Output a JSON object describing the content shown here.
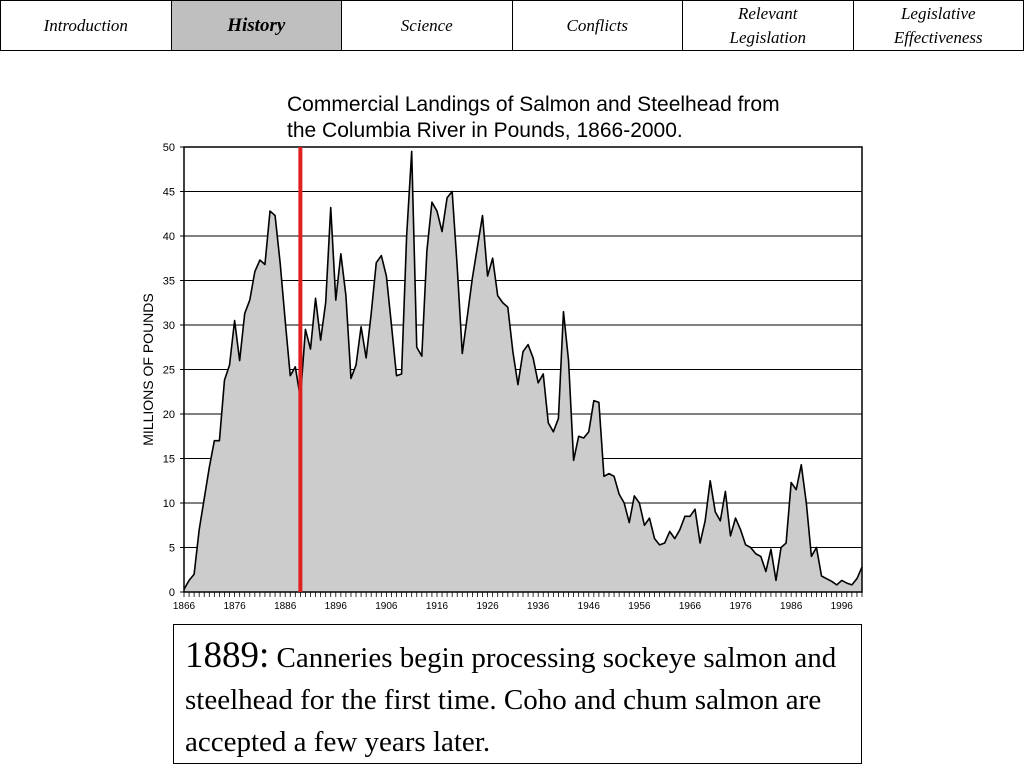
{
  "nav": {
    "tabs": [
      {
        "label": "Introduction",
        "active": false
      },
      {
        "label": "History",
        "active": true
      },
      {
        "label": "Science",
        "active": false
      },
      {
        "label": "Conflicts",
        "active": false
      },
      {
        "label": "Relevant\nLegislation",
        "active": false
      },
      {
        "label": "Legislative\nEffectiveness",
        "active": false
      }
    ]
  },
  "chart_data": {
    "type": "area",
    "title": "Commercial Landings of Salmon and Steelhead from\n the Columbia River in Pounds, 1866-2000.",
    "ylabel": "MILLIONS OF POUNDS",
    "xlabel": "",
    "xlim": [
      1866,
      2000
    ],
    "ylim": [
      0,
      50
    ],
    "yticks": [
      0,
      5,
      10,
      15,
      20,
      25,
      30,
      35,
      40,
      45,
      50
    ],
    "xticks": [
      1866,
      1876,
      1886,
      1896,
      1906,
      1916,
      1926,
      1936,
      1946,
      1956,
      1966,
      1976,
      1986,
      1996
    ],
    "grid": "horizontal",
    "fill_color": "#cccccc",
    "line_color": "#000000",
    "marker_year": 1889,
    "marker_color": "#e02020",
    "x": [
      1866,
      1867,
      1868,
      1869,
      1870,
      1871,
      1872,
      1873,
      1874,
      1875,
      1876,
      1877,
      1878,
      1879,
      1880,
      1881,
      1882,
      1883,
      1884,
      1885,
      1886,
      1887,
      1888,
      1889,
      1890,
      1891,
      1892,
      1893,
      1894,
      1895,
      1896,
      1897,
      1898,
      1899,
      1900,
      1901,
      1902,
      1903,
      1904,
      1905,
      1906,
      1907,
      1908,
      1909,
      1910,
      1911,
      1912,
      1913,
      1914,
      1915,
      1916,
      1917,
      1918,
      1919,
      1920,
      1921,
      1922,
      1923,
      1924,
      1925,
      1926,
      1927,
      1928,
      1929,
      1930,
      1931,
      1932,
      1933,
      1934,
      1935,
      1936,
      1937,
      1938,
      1939,
      1940,
      1941,
      1942,
      1943,
      1944,
      1945,
      1946,
      1947,
      1948,
      1949,
      1950,
      1951,
      1952,
      1953,
      1954,
      1955,
      1956,
      1957,
      1958,
      1959,
      1960,
      1961,
      1962,
      1963,
      1964,
      1965,
      1966,
      1967,
      1968,
      1969,
      1970,
      1971,
      1972,
      1973,
      1974,
      1975,
      1976,
      1977,
      1978,
      1979,
      1980,
      1981,
      1982,
      1983,
      1984,
      1985,
      1986,
      1987,
      1988,
      1989,
      1990,
      1991,
      1992,
      1993,
      1994,
      1995,
      1996,
      1997,
      1998,
      1999,
      2000
    ],
    "values": [
      0.3,
      1.3,
      2.0,
      7.0,
      10.5,
      14.0,
      17.0,
      17.0,
      23.8,
      25.5,
      30.5,
      26.0,
      31.3,
      32.8,
      36.0,
      37.3,
      36.8,
      42.8,
      42.3,
      37.0,
      30.5,
      24.3,
      25.3,
      21.8,
      29.5,
      27.3,
      33.0,
      28.3,
      32.5,
      43.2,
      32.8,
      38.0,
      33.3,
      24.0,
      25.5,
      29.8,
      26.3,
      31.3,
      37.0,
      37.8,
      35.5,
      30.0,
      24.3,
      24.5,
      40.0,
      49.5,
      27.5,
      26.5,
      38.3,
      43.8,
      42.8,
      40.5,
      44.3,
      45.0,
      36.5,
      26.8,
      31.0,
      35.3,
      38.8,
      42.3,
      35.5,
      37.5,
      33.3,
      32.5,
      32.0,
      27.0,
      23.3,
      27.0,
      27.8,
      26.3,
      23.5,
      24.5,
      19.0,
      18.0,
      19.5,
      31.5,
      26.0,
      14.8,
      17.5,
      17.3,
      18.0,
      21.5,
      21.3,
      13.0,
      13.3,
      13.0,
      11.0,
      10.0,
      7.8,
      10.8,
      10.0,
      7.5,
      8.3,
      6.0,
      5.3,
      5.5,
      6.8,
      6.0,
      7.0,
      8.5,
      8.5,
      9.3,
      5.5,
      8.0,
      12.5,
      9.0,
      8.0,
      11.3,
      6.3,
      8.3,
      7.0,
      5.3,
      5.0,
      4.3,
      4.0,
      2.3,
      4.8,
      1.3,
      5.0,
      5.5,
      12.3,
      11.5,
      14.3,
      10.0,
      4.0,
      5.0,
      1.8,
      1.5,
      1.2,
      0.8,
      1.3,
      1.0,
      0.8,
      1.5,
      2.8
    ]
  },
  "caption": {
    "year": "1889:",
    "text": " Canneries begin processing sockeye salmon and steelhead for the first time. Coho and chum salmon are accepted a few years later."
  }
}
